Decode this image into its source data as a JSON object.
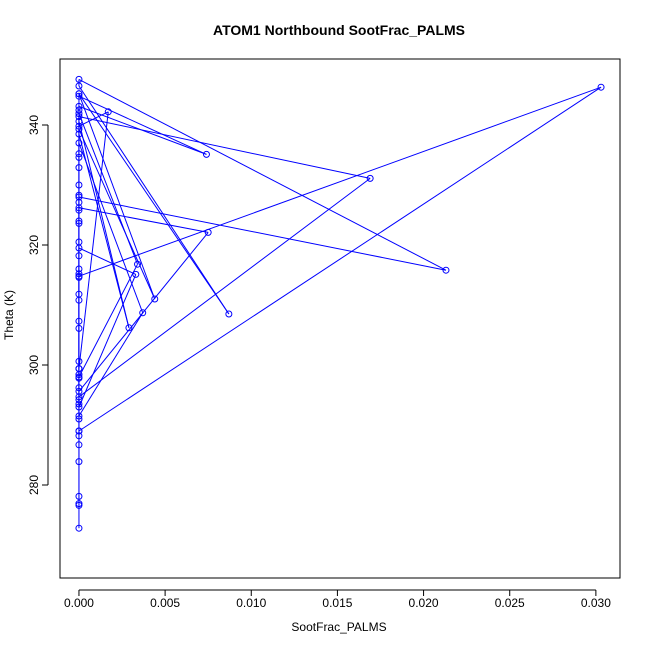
{
  "chart_data": {
    "type": "scatter",
    "title": "ATOM1 Northbound SootFrac_PALMS",
    "xlabel": "SootFrac_PALMS",
    "ylabel": "Theta (K)",
    "xlim": [
      -0.0011,
      0.0314
    ],
    "ylim": [
      264.5,
      351
    ],
    "xticks": [
      "0.000",
      "0.005",
      "0.010",
      "0.015",
      "0.020",
      "0.025",
      "0.030"
    ],
    "xtick_values": [
      0,
      0.005,
      0.01,
      0.015,
      0.02,
      0.025,
      0.03
    ],
    "yticks": [
      "280",
      "300",
      "320",
      "340"
    ],
    "ytick_values": [
      280,
      300,
      320,
      340
    ],
    "series": [
      {
        "color": "#0000ff",
        "marker": "open-circle",
        "line": true,
        "x": [
          0,
          0,
          0,
          0,
          0,
          0,
          0,
          0,
          0,
          0,
          0,
          0,
          0,
          0,
          0,
          0,
          0,
          0,
          0,
          0,
          0,
          0,
          0,
          0,
          0,
          0,
          0,
          0,
          0,
          0,
          0,
          0,
          0,
          0.0029,
          0,
          0,
          0,
          0.0074,
          0,
          0,
          0.0087,
          0,
          0,
          0.0213,
          0,
          0,
          0,
          0.0075,
          0,
          0,
          0.0033,
          0,
          0,
          0.0169,
          0,
          0,
          0.0037,
          0,
          0,
          0.0303,
          0,
          0,
          0.0017,
          0,
          0,
          0.0034,
          0,
          0,
          0.0044,
          0,
          0
        ],
        "y": [
          272.8,
          276.9,
          278.1,
          283.9,
          286.7,
          288.2,
          289.0,
          291.0,
          293.5,
          294.2,
          296.2,
          297.8,
          298.4,
          299.4,
          300.6,
          306.1,
          307.3,
          310.8,
          311.8,
          314.6,
          315.2,
          316.0,
          318.2,
          320.5,
          323.6,
          325.8,
          327.1,
          328.3,
          330.0,
          332.9,
          334.6,
          335.2,
          338.5,
          306.2,
          340.6,
          342.5,
          343.1,
          335.1,
          344.8,
          345.2,
          308.5,
          346.5,
          347.6,
          315.8,
          328.0,
          324.0,
          295.6,
          322.1,
          326.2,
          293.0,
          315.1,
          319.5,
          294.7,
          331.1,
          341.4,
          291.5,
          308.7,
          337.0,
          289.0,
          346.3,
          314.8,
          299.4,
          342.2,
          339.8,
          298.0,
          316.8,
          341.9,
          339.3,
          311.0,
          345.2,
          276.6
        ]
      }
    ]
  }
}
